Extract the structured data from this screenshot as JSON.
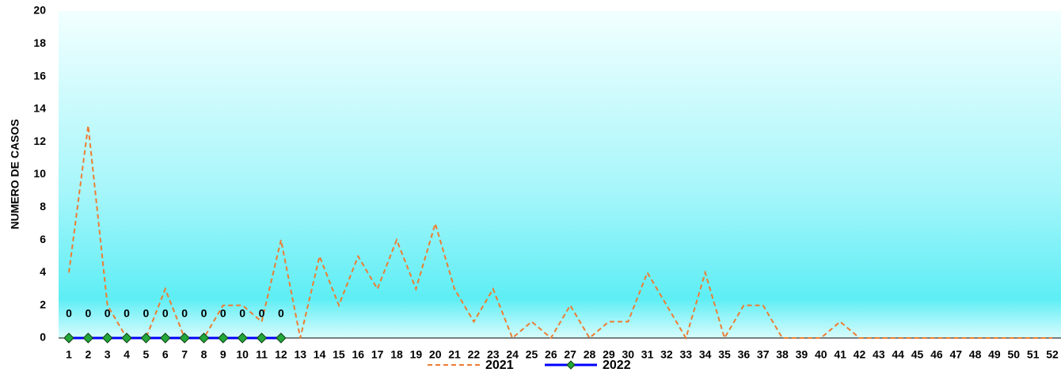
{
  "chart_data": {
    "type": "line",
    "y_label": "NUMERO DE CASOS",
    "categories": [
      1,
      2,
      3,
      4,
      5,
      6,
      7,
      8,
      9,
      10,
      11,
      12,
      13,
      14,
      15,
      16,
      17,
      18,
      19,
      20,
      21,
      22,
      23,
      24,
      25,
      26,
      27,
      28,
      29,
      30,
      31,
      32,
      33,
      34,
      35,
      36,
      37,
      38,
      39,
      40,
      41,
      42,
      43,
      44,
      45,
      46,
      47,
      48,
      49,
      50,
      51,
      52
    ],
    "series": [
      {
        "name": "2021",
        "color": "#ed7d31",
        "dashed": true,
        "values": [
          4,
          13,
          2,
          0,
          0,
          3,
          0,
          0,
          2,
          2,
          1,
          6,
          0,
          5,
          2,
          5,
          3,
          6,
          3,
          7,
          3,
          1,
          3,
          0,
          1,
          0,
          2,
          0,
          1,
          1,
          4,
          2,
          0,
          4,
          0,
          2,
          2,
          0,
          0,
          0,
          1,
          0,
          0,
          0,
          0,
          0,
          0,
          0,
          0,
          0,
          0,
          0
        ]
      },
      {
        "name": "2022",
        "color": "#0000ff",
        "marker_color": "#22a83a",
        "data_labels": true,
        "values": [
          0,
          0,
          0,
          0,
          0,
          0,
          0,
          0,
          0,
          0,
          0,
          0,
          null,
          null,
          null,
          null,
          null,
          null,
          null,
          null,
          null,
          null,
          null,
          null,
          null,
          null,
          null,
          null,
          null,
          null,
          null,
          null,
          null,
          null,
          null,
          null,
          null,
          null,
          null,
          null,
          null,
          null,
          null,
          null,
          null,
          null,
          null,
          null,
          null,
          null,
          null,
          null
        ]
      }
    ],
    "ylim": [
      0,
      20
    ],
    "yticks": [
      0,
      2,
      4,
      6,
      8,
      10,
      12,
      14,
      16,
      18,
      20
    ],
    "grid": false,
    "legend": "bottom"
  }
}
